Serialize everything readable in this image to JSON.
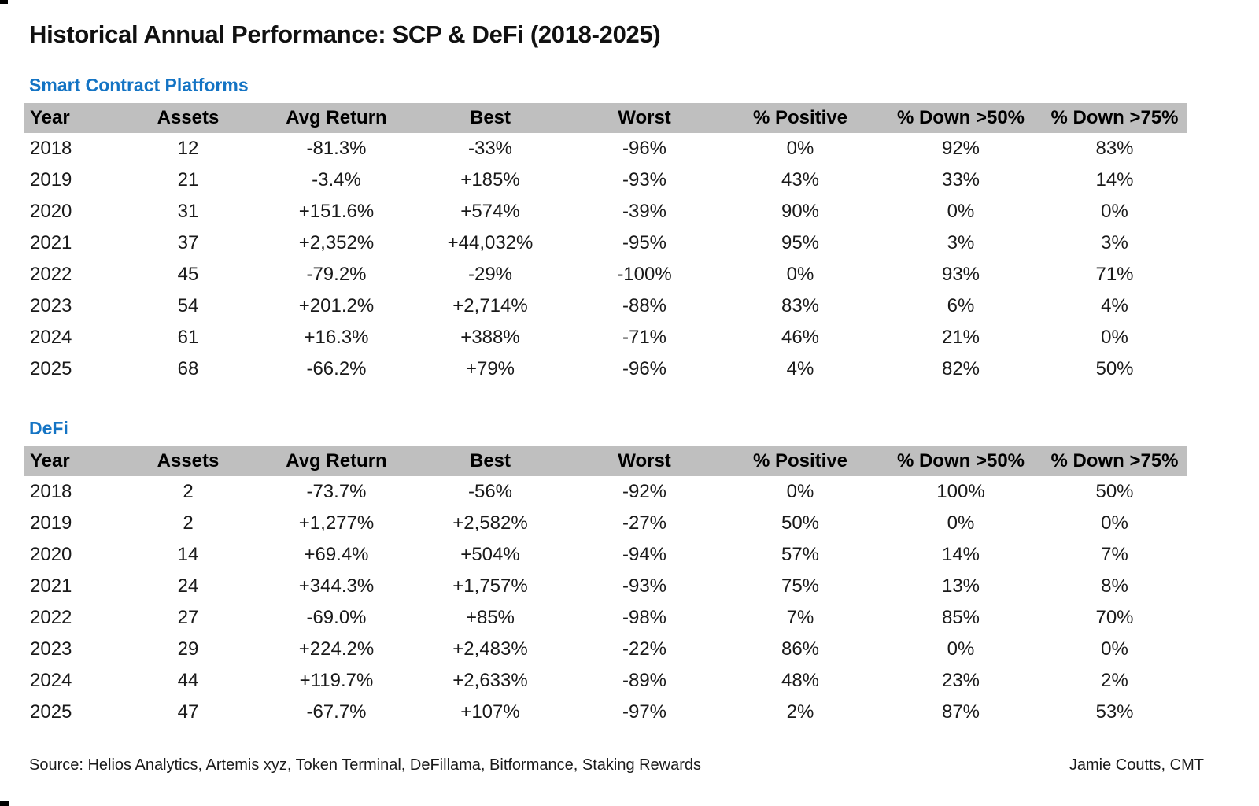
{
  "title": "Historical Annual Performance: SCP & DeFi (2018-2025)",
  "colors": {
    "accent_blue": "#1474c4",
    "positive_green": "#159a43",
    "negative_red": "#e8282f",
    "header_gray": "#bfbfbf",
    "text_black": "#1a1a1a"
  },
  "columns": [
    "Year",
    "Assets",
    "Avg Return",
    "Best",
    "Worst",
    "% Positive",
    "% Down >50%",
    "% Down >75%"
  ],
  "tables": [
    {
      "heading": "Smart Contract Platforms",
      "rows": [
        [
          "2018",
          "12",
          "-81.3%",
          "-33%",
          "-96%",
          "0%",
          "92%",
          "83%"
        ],
        [
          "2019",
          "21",
          "-3.4%",
          "+185%",
          "-93%",
          "43%",
          "33%",
          "14%"
        ],
        [
          "2020",
          "31",
          "+151.6%",
          "+574%",
          "-39%",
          "90%",
          "0%",
          "0%"
        ],
        [
          "2021",
          "37",
          "+2,352%",
          "+44,032%",
          "-95%",
          "95%",
          "3%",
          "3%"
        ],
        [
          "2022",
          "45",
          "-79.2%",
          "-29%",
          "-100%",
          "0%",
          "93%",
          "71%"
        ],
        [
          "2023",
          "54",
          "+201.2%",
          "+2,714%",
          "-88%",
          "83%",
          "6%",
          "4%"
        ],
        [
          "2024",
          "61",
          "+16.3%",
          "+388%",
          "-71%",
          "46%",
          "21%",
          "0%"
        ],
        [
          "2025",
          "68",
          "-66.2%",
          "+79%",
          "-96%",
          "4%",
          "82%",
          "50%"
        ]
      ]
    },
    {
      "heading": "DeFi",
      "rows": [
        [
          "2018",
          "2",
          "-73.7%",
          "-56%",
          "-92%",
          "0%",
          "100%",
          "50%"
        ],
        [
          "2019",
          "2",
          "+1,277%",
          "+2,582%",
          "-27%",
          "50%",
          "0%",
          "0%"
        ],
        [
          "2020",
          "14",
          "+69.4%",
          "+504%",
          "-94%",
          "57%",
          "14%",
          "7%"
        ],
        [
          "2021",
          "24",
          "+344.3%",
          "+1,757%",
          "-93%",
          "75%",
          "13%",
          "8%"
        ],
        [
          "2022",
          "27",
          "-69.0%",
          "+85%",
          "-98%",
          "7%",
          "85%",
          "70%"
        ],
        [
          "2023",
          "29",
          "+224.2%",
          "+2,483%",
          "-22%",
          "86%",
          "0%",
          "0%"
        ],
        [
          "2024",
          "44",
          "+119.7%",
          "+2,633%",
          "-89%",
          "48%",
          "23%",
          "2%"
        ],
        [
          "2025",
          "47",
          "-67.7%",
          "+107%",
          "-97%",
          "2%",
          "87%",
          "53%"
        ]
      ]
    }
  ],
  "footer": {
    "source": "Source: Helios Analytics, Artemis xyz, Token Terminal, DeFillama, Bitformance, Staking Rewards",
    "credit": "Jamie Coutts, CMT"
  },
  "chart_data": [
    {
      "type": "table",
      "title": "Smart Contract Platforms",
      "columns": [
        "Year",
        "Assets",
        "Avg Return %",
        "Best %",
        "Worst %",
        "% Positive",
        "% Down >50%",
        "% Down >75%"
      ],
      "rows": [
        [
          2018,
          12,
          -81.3,
          -33,
          -96,
          0,
          92,
          83
        ],
        [
          2019,
          21,
          -3.4,
          185,
          -93,
          43,
          33,
          14
        ],
        [
          2020,
          31,
          151.6,
          574,
          -39,
          90,
          0,
          0
        ],
        [
          2021,
          37,
          2352,
          44032,
          -95,
          95,
          3,
          3
        ],
        [
          2022,
          45,
          -79.2,
          -29,
          -100,
          0,
          93,
          71
        ],
        [
          2023,
          54,
          201.2,
          2714,
          -88,
          83,
          6,
          4
        ],
        [
          2024,
          61,
          16.3,
          388,
          -71,
          46,
          21,
          0
        ],
        [
          2025,
          68,
          -66.2,
          79,
          -96,
          4,
          82,
          50
        ]
      ]
    },
    {
      "type": "table",
      "title": "DeFi",
      "columns": [
        "Year",
        "Assets",
        "Avg Return %",
        "Best %",
        "Worst %",
        "% Positive",
        "% Down >50%",
        "% Down >75%"
      ],
      "rows": [
        [
          2018,
          2,
          -73.7,
          -56,
          -92,
          0,
          100,
          50
        ],
        [
          2019,
          2,
          1277,
          2582,
          -27,
          50,
          0,
          0
        ],
        [
          2020,
          14,
          69.4,
          504,
          -94,
          57,
          14,
          7
        ],
        [
          2021,
          24,
          344.3,
          1757,
          -93,
          75,
          13,
          8
        ],
        [
          2022,
          27,
          -69.0,
          85,
          -98,
          7,
          85,
          70
        ],
        [
          2023,
          29,
          224.2,
          2483,
          -22,
          86,
          0,
          0
        ],
        [
          2024,
          44,
          119.7,
          2633,
          -89,
          48,
          23,
          2
        ],
        [
          2025,
          47,
          -67.7,
          107,
          -97,
          2,
          87,
          53
        ]
      ]
    }
  ]
}
